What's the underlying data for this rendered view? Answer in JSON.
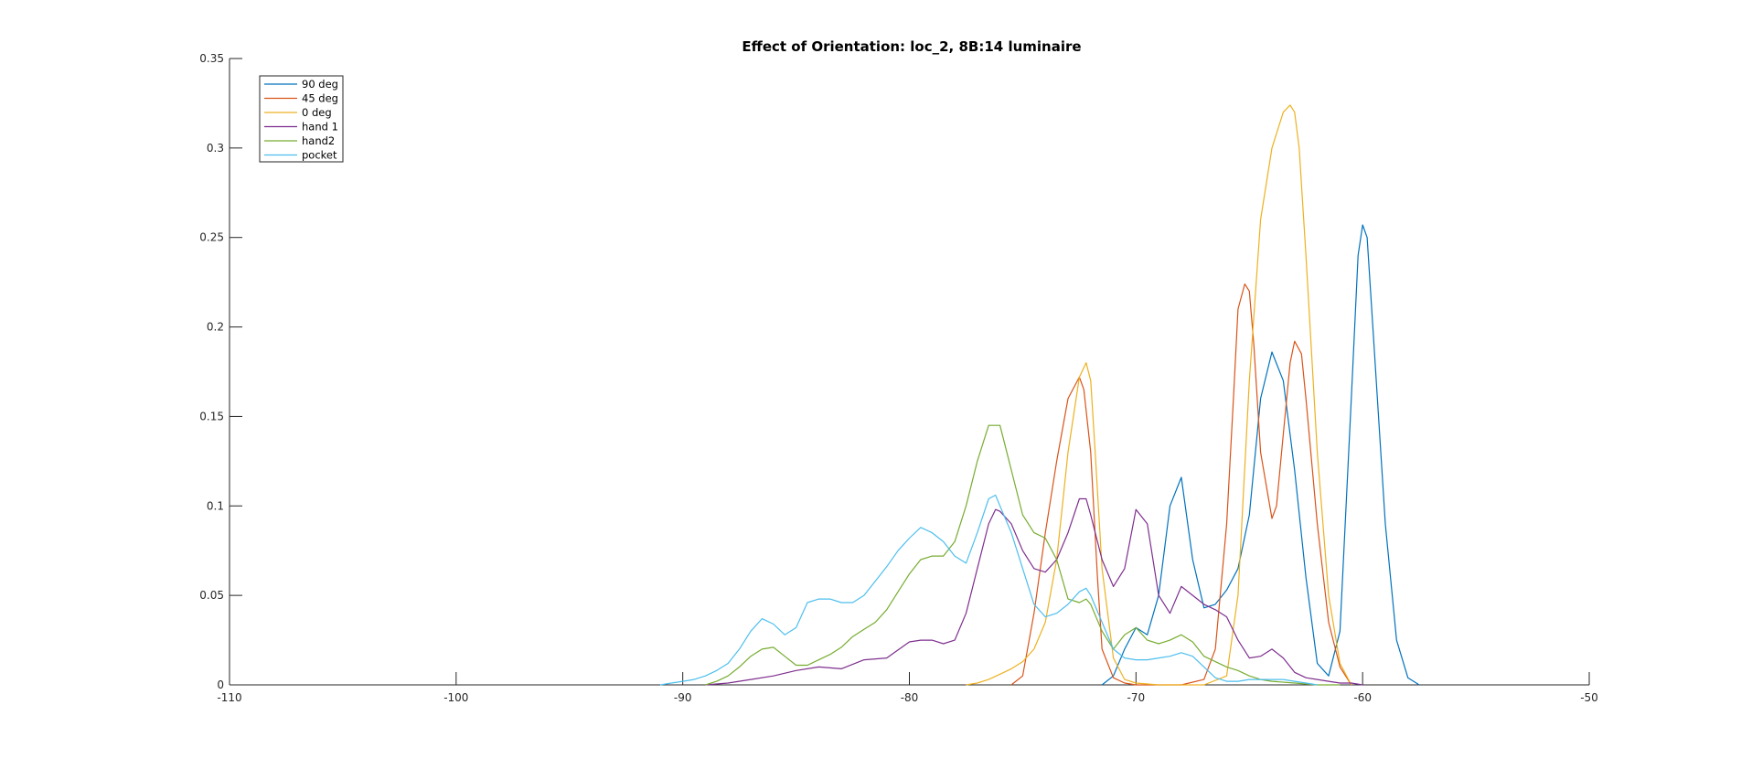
{
  "chart_data": {
    "type": "line",
    "title": "Effect of Orientation: loc_2, 8B:14 luminaire",
    "xlabel": "",
    "ylabel": "",
    "xlim": [
      -110,
      -50
    ],
    "ylim": [
      0,
      0.35
    ],
    "xticks": [
      -110,
      -100,
      -90,
      -80,
      -70,
      -60,
      -50
    ],
    "xtick_labels": [
      "-110",
      "-100",
      "-90",
      "-80",
      "-70",
      "-60",
      "-50"
    ],
    "yticks": [
      0,
      0.05,
      0.1,
      0.15,
      0.2,
      0.25,
      0.3,
      0.35
    ],
    "ytick_labels": [
      "0",
      "0.05",
      "0.1",
      "0.15",
      "0.2",
      "0.25",
      "0.3",
      "0.35"
    ],
    "grid": false,
    "legend_position": "top-left",
    "series": [
      {
        "name": "90 deg",
        "color": "#0072BD",
        "x": [
          -71.5,
          -71,
          -70.5,
          -70,
          -69.5,
          -69,
          -68.5,
          -68,
          -67.5,
          -67,
          -66.5,
          -66,
          -65.5,
          -65,
          -64.5,
          -64,
          -63.5,
          -63,
          -62.5,
          -62,
          -61.5,
          -61,
          -60.5,
          -60.2,
          -60,
          -59.8,
          -59.5,
          -59,
          -58.5,
          -58,
          -57.5
        ],
        "y": [
          0,
          0.005,
          0.02,
          0.032,
          0.028,
          0.05,
          0.1,
          0.116,
          0.07,
          0.043,
          0.045,
          0.053,
          0.065,
          0.095,
          0.16,
          0.186,
          0.17,
          0.12,
          0.06,
          0.012,
          0.005,
          0.03,
          0.16,
          0.24,
          0.257,
          0.25,
          0.19,
          0.09,
          0.025,
          0.004,
          0
        ]
      },
      {
        "name": "45 deg",
        "color": "#D95319",
        "x": [
          -75.5,
          -75,
          -74.5,
          -74,
          -73.5,
          -73,
          -72.5,
          -72.3,
          -72,
          -71.7,
          -71.5,
          -71,
          -70.5,
          -70,
          -69,
          -68,
          -67,
          -66.5,
          -66,
          -65.7,
          -65.5,
          -65.2,
          -65,
          -64.8,
          -64.5,
          -64,
          -63.8,
          -63.5,
          -63.2,
          -63,
          -62.7,
          -62.5,
          -62,
          -61.5,
          -61,
          -60.5
        ],
        "y": [
          0,
          0.005,
          0.04,
          0.085,
          0.125,
          0.16,
          0.172,
          0.165,
          0.13,
          0.06,
          0.02,
          0.004,
          0.001,
          0,
          0,
          0,
          0.003,
          0.02,
          0.09,
          0.16,
          0.21,
          0.224,
          0.22,
          0.19,
          0.13,
          0.093,
          0.1,
          0.14,
          0.18,
          0.192,
          0.185,
          0.16,
          0.09,
          0.035,
          0.01,
          0
        ]
      },
      {
        "name": "0 deg",
        "color": "#EDB120",
        "x": [
          -77.5,
          -77,
          -76.5,
          -76,
          -75.5,
          -75,
          -74.5,
          -74,
          -73.5,
          -73,
          -72.5,
          -72.2,
          -72,
          -71.8,
          -71.5,
          -71,
          -70.5,
          -70,
          -69,
          -68,
          -67,
          -66,
          -65.5,
          -65,
          -64.5,
          -64,
          -63.5,
          -63.2,
          -63,
          -62.8,
          -62.5,
          -62,
          -61.5,
          -61,
          -60.5
        ],
        "y": [
          0,
          0.001,
          0.003,
          0.006,
          0.009,
          0.013,
          0.02,
          0.035,
          0.07,
          0.13,
          0.172,
          0.18,
          0.17,
          0.13,
          0.065,
          0.015,
          0.003,
          0.001,
          0,
          0,
          0,
          0.005,
          0.05,
          0.17,
          0.26,
          0.3,
          0.32,
          0.324,
          0.32,
          0.3,
          0.24,
          0.13,
          0.05,
          0.012,
          0
        ]
      },
      {
        "name": "hand 1",
        "color": "#7E2F8E",
        "x": [
          -89,
          -88,
          -87,
          -86,
          -85,
          -84,
          -83,
          -82,
          -81,
          -80,
          -79.5,
          -79,
          -78.5,
          -78,
          -77.5,
          -77,
          -76.5,
          -76.2,
          -76,
          -75.5,
          -75,
          -74.5,
          -74,
          -73.5,
          -73,
          -72.5,
          -72.2,
          -72,
          -71.5,
          -71,
          -70.5,
          -70,
          -69.5,
          -69,
          -68.5,
          -68,
          -67.5,
          -67,
          -66.5,
          -66,
          -65.5,
          -65,
          -64.5,
          -64,
          -63.5,
          -63,
          -62.5,
          -62,
          -61.5,
          -61,
          -60.5,
          -60
        ],
        "y": [
          0,
          0.001,
          0.003,
          0.005,
          0.008,
          0.01,
          0.009,
          0.014,
          0.015,
          0.024,
          0.025,
          0.025,
          0.023,
          0.025,
          0.04,
          0.065,
          0.09,
          0.098,
          0.097,
          0.09,
          0.075,
          0.065,
          0.063,
          0.07,
          0.085,
          0.104,
          0.104,
          0.095,
          0.07,
          0.055,
          0.065,
          0.098,
          0.09,
          0.05,
          0.04,
          0.055,
          0.05,
          0.045,
          0.042,
          0.038,
          0.025,
          0.015,
          0.016,
          0.02,
          0.015,
          0.007,
          0.004,
          0.003,
          0.002,
          0.001,
          0.001,
          0
        ]
      },
      {
        "name": "hand2",
        "color": "#77AC30",
        "x": [
          -89,
          -88.5,
          -88,
          -87.5,
          -87,
          -86.5,
          -86,
          -85.5,
          -85,
          -84.5,
          -84,
          -83.5,
          -83,
          -82.5,
          -82,
          -81.5,
          -81,
          -80.5,
          -80,
          -79.5,
          -79,
          -78.5,
          -78,
          -77.5,
          -77,
          -76.5,
          -76,
          -75.5,
          -75,
          -74.5,
          -74,
          -73.5,
          -73,
          -72.5,
          -72.2,
          -72,
          -71.5,
          -71,
          -70.5,
          -70,
          -69.5,
          -69,
          -68.5,
          -68,
          -67.5,
          -67,
          -66.5,
          -66,
          -65.5,
          -65,
          -64.5,
          -64,
          -63,
          -62,
          -61
        ],
        "y": [
          0,
          0.002,
          0.005,
          0.01,
          0.016,
          0.02,
          0.021,
          0.016,
          0.011,
          0.011,
          0.014,
          0.017,
          0.021,
          0.027,
          0.031,
          0.035,
          0.042,
          0.052,
          0.062,
          0.07,
          0.072,
          0.072,
          0.08,
          0.1,
          0.125,
          0.145,
          0.145,
          0.12,
          0.095,
          0.085,
          0.082,
          0.07,
          0.048,
          0.046,
          0.048,
          0.045,
          0.03,
          0.02,
          0.028,
          0.032,
          0.025,
          0.023,
          0.025,
          0.028,
          0.024,
          0.016,
          0.013,
          0.01,
          0.008,
          0.005,
          0.003,
          0.002,
          0.001,
          0,
          0
        ]
      },
      {
        "name": "pocket",
        "color": "#4DBEEE",
        "x": [
          -91,
          -90.5,
          -90,
          -89.5,
          -89,
          -88.5,
          -88,
          -87.5,
          -87,
          -86.5,
          -86,
          -85.5,
          -85,
          -84.5,
          -84,
          -83.5,
          -83,
          -82.5,
          -82,
          -81.5,
          -81,
          -80.5,
          -80,
          -79.5,
          -79,
          -78.5,
          -78,
          -77.5,
          -77,
          -76.5,
          -76.2,
          -76,
          -75.5,
          -75,
          -74.5,
          -74,
          -73.5,
          -73,
          -72.5,
          -72.2,
          -72,
          -71.5,
          -71,
          -70.5,
          -70,
          -69.5,
          -69,
          -68.5,
          -68,
          -67.5,
          -67,
          -66.5,
          -66,
          -65.5,
          -65,
          -64.5,
          -64,
          -63.5,
          -63,
          -62.5,
          -62
        ],
        "y": [
          0,
          0.001,
          0.002,
          0.003,
          0.005,
          0.008,
          0.012,
          0.02,
          0.03,
          0.037,
          0.034,
          0.028,
          0.032,
          0.046,
          0.048,
          0.048,
          0.046,
          0.046,
          0.05,
          0.058,
          0.066,
          0.075,
          0.082,
          0.088,
          0.085,
          0.08,
          0.072,
          0.068,
          0.085,
          0.104,
          0.106,
          0.1,
          0.085,
          0.065,
          0.045,
          0.038,
          0.04,
          0.045,
          0.052,
          0.054,
          0.05,
          0.035,
          0.02,
          0.015,
          0.014,
          0.014,
          0.015,
          0.016,
          0.018,
          0.016,
          0.01,
          0.004,
          0.002,
          0.002,
          0.003,
          0.003,
          0.003,
          0.003,
          0.002,
          0.001,
          0
        ]
      }
    ]
  }
}
